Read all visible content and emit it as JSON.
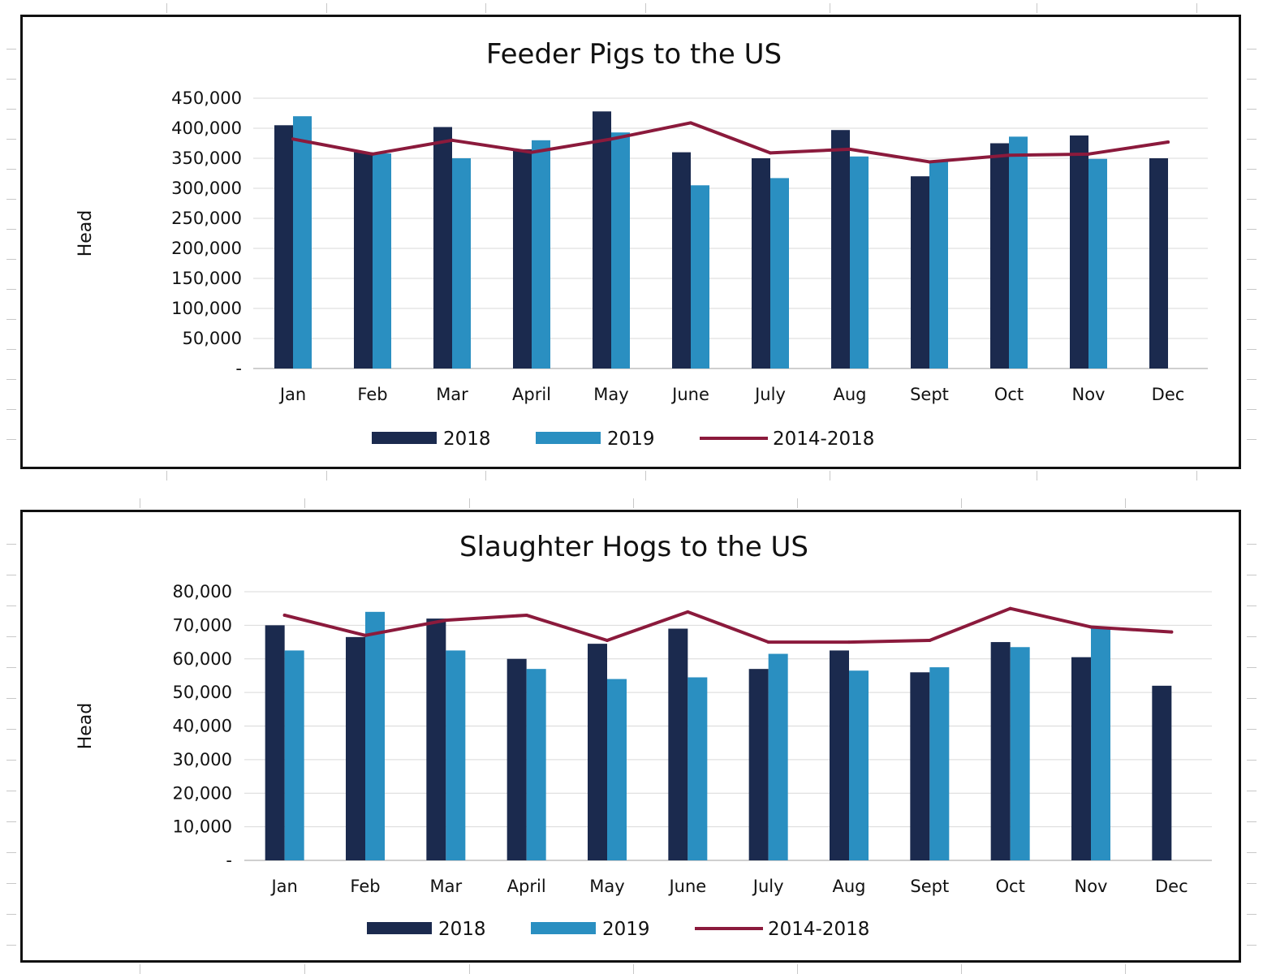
{
  "colors": {
    "s2018": "#1b2a4e",
    "s2019": "#2a8fc1",
    "avg": "#8b1a3c"
  },
  "chart_data": [
    {
      "type": "bar",
      "title": "Feeder Pigs to the US",
      "ylabel": "Head",
      "ylim": [
        0,
        450000
      ],
      "yticks": [
        {
          "v": 0,
          "label": "-"
        },
        {
          "v": 50000,
          "label": "50,000"
        },
        {
          "v": 100000,
          "label": "100,000"
        },
        {
          "v": 150000,
          "label": "150,000"
        },
        {
          "v": 200000,
          "label": "200,000"
        },
        {
          "v": 250000,
          "label": "250,000"
        },
        {
          "v": 300000,
          "label": "300,000"
        },
        {
          "v": 350000,
          "label": "350,000"
        },
        {
          "v": 400000,
          "label": "400,000"
        },
        {
          "v": 450000,
          "label": "450,000"
        }
      ],
      "categories": [
        "Jan",
        "Feb",
        "Mar",
        "April",
        "May",
        "June",
        "July",
        "Aug",
        "Sept",
        "Oct",
        "Nov",
        "Dec"
      ],
      "legend_position": "bottom",
      "grid": true,
      "series": [
        {
          "name": "2018",
          "kind": "bar",
          "color": "#1b2a4e",
          "values": [
            405000,
            360000,
            402000,
            365000,
            428000,
            360000,
            350000,
            397000,
            320000,
            375000,
            388000,
            350000
          ]
        },
        {
          "name": "2019",
          "kind": "bar",
          "color": "#2a8fc1",
          "values": [
            420000,
            358000,
            350000,
            380000,
            393000,
            305000,
            317000,
            353000,
            345000,
            386000,
            349000,
            null
          ]
        },
        {
          "name": "2014-2018",
          "kind": "line",
          "color": "#8b1a3c",
          "values": [
            382000,
            357000,
            380000,
            360000,
            382000,
            409000,
            359000,
            365000,
            344000,
            355000,
            357000,
            377000
          ]
        }
      ]
    },
    {
      "type": "bar",
      "title": "Slaughter Hogs to the US",
      "ylabel": "Head",
      "ylim": [
        0,
        80000
      ],
      "yticks": [
        {
          "v": 0,
          "label": "-"
        },
        {
          "v": 10000,
          "label": "10,000"
        },
        {
          "v": 20000,
          "label": "20,000"
        },
        {
          "v": 30000,
          "label": "30,000"
        },
        {
          "v": 40000,
          "label": "40,000"
        },
        {
          "v": 50000,
          "label": "50,000"
        },
        {
          "v": 60000,
          "label": "60,000"
        },
        {
          "v": 70000,
          "label": "70,000"
        },
        {
          "v": 80000,
          "label": "80,000"
        }
      ],
      "categories": [
        "Jan",
        "Feb",
        "Mar",
        "April",
        "May",
        "June",
        "July",
        "Aug",
        "Sept",
        "Oct",
        "Nov",
        "Dec"
      ],
      "legend_position": "bottom",
      "grid": true,
      "series": [
        {
          "name": "2018",
          "kind": "bar",
          "color": "#1b2a4e",
          "values": [
            70000,
            66500,
            72000,
            60000,
            64500,
            69000,
            57000,
            62500,
            56000,
            65000,
            60500,
            52000
          ]
        },
        {
          "name": "2019",
          "kind": "bar",
          "color": "#2a8fc1",
          "values": [
            62500,
            74000,
            62500,
            57000,
            54000,
            54500,
            61500,
            56500,
            57500,
            63500,
            69000,
            null
          ]
        },
        {
          "name": "2014-2018",
          "kind": "line",
          "color": "#8b1a3c",
          "values": [
            73000,
            67000,
            71500,
            73000,
            65500,
            74000,
            65000,
            65000,
            65500,
            75000,
            69500,
            68000
          ]
        }
      ]
    }
  ]
}
